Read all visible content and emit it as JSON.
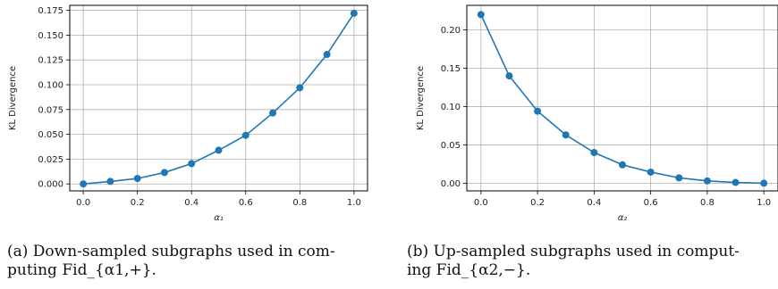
{
  "chart_data": [
    {
      "type": "line",
      "xlabel": "α₁",
      "ylabel": "KL Divergence",
      "x": [
        0.0,
        0.1,
        0.2,
        0.3,
        0.4,
        0.5,
        0.6,
        0.7,
        0.8,
        0.9,
        1.0
      ],
      "series": [
        {
          "values": [
            0.0,
            0.0025,
            0.0055,
            0.0115,
            0.0205,
            0.034,
            0.049,
            0.0715,
            0.097,
            0.1305,
            0.172
          ]
        }
      ],
      "xlim": [
        -0.05,
        1.05
      ],
      "ylim": [
        -0.007,
        0.18
      ],
      "xticks": [
        "0.0",
        "0.2",
        "0.4",
        "0.6",
        "0.8",
        "1.0"
      ],
      "yticks": [
        "0.000",
        "0.025",
        "0.050",
        "0.075",
        "0.100",
        "0.125",
        "0.150",
        "0.175"
      ],
      "grid": true,
      "color": "#1f77b4"
    },
    {
      "type": "line",
      "xlabel": "α₂",
      "ylabel": "KL Divergence",
      "x": [
        0.0,
        0.1,
        0.2,
        0.3,
        0.4,
        0.5,
        0.6,
        0.7,
        0.8,
        0.9,
        1.0
      ],
      "series": [
        {
          "values": [
            0.22,
            0.14,
            0.094,
            0.063,
            0.04,
            0.024,
            0.0145,
            0.007,
            0.003,
            0.001,
            0.0
          ]
        }
      ],
      "xlim": [
        -0.05,
        1.05
      ],
      "ylim": [
        -0.01,
        0.232
      ],
      "xticks": [
        "0.0",
        "0.2",
        "0.4",
        "0.6",
        "0.8",
        "1.0"
      ],
      "yticks": [
        "0.00",
        "0.05",
        "0.10",
        "0.15",
        "0.20"
      ],
      "grid": true,
      "color": "#1f77b4"
    }
  ],
  "captions": {
    "a": "(a) Down-sampled subgraphs used in com-\nputing Fid_{α1,+}.",
    "b": "(b) Up-sampled subgraphs used in comput-\ning Fid_{α2,−}."
  }
}
